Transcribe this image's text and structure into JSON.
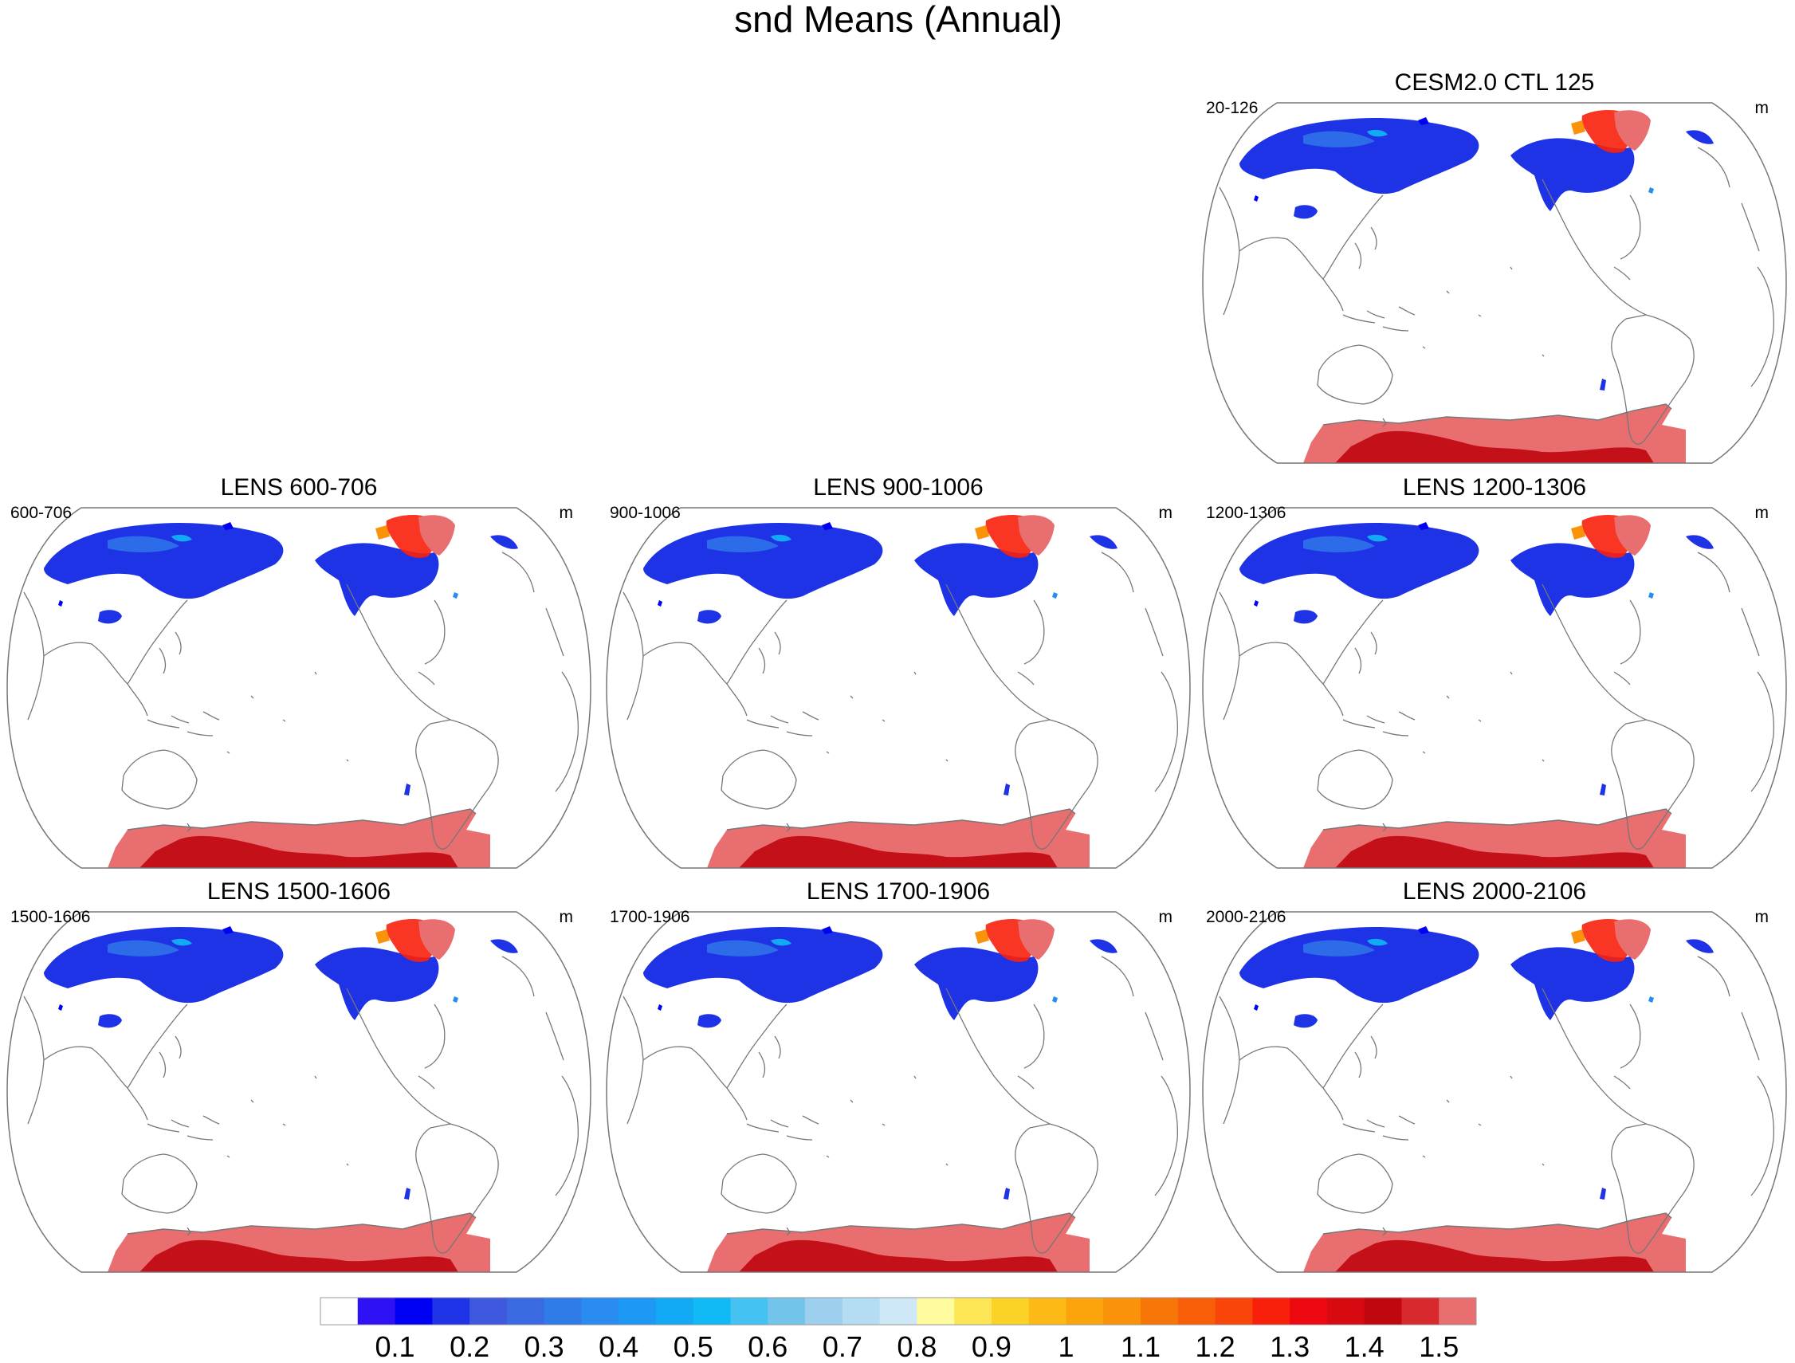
{
  "chart_data": {
    "type": "heatmap",
    "title": "snd Means (Annual)",
    "projection": "Robinson (Pacific-centered)",
    "units": "m",
    "panels": [
      {
        "title": "CESM2.0 CTL 125",
        "left_label": "20-126",
        "right_label": "m"
      },
      {
        "title": "LENS 600-706",
        "left_label": "600-706",
        "right_label": "m"
      },
      {
        "title": "LENS 900-1006",
        "left_label": "900-1006",
        "right_label": "m"
      },
      {
        "title": "LENS 1200-1306",
        "left_label": "1200-1306",
        "right_label": "m"
      },
      {
        "title": "LENS 1500-1606",
        "left_label": "1500-1606",
        "right_label": "m"
      },
      {
        "title": "LENS 1700-1906",
        "left_label": "1700-1906",
        "right_label": "m"
      },
      {
        "title": "LENS 2000-2106",
        "left_label": "2000-2106",
        "right_label": "m"
      }
    ],
    "colorbar": {
      "levels": [
        0.05,
        0.1,
        0.15,
        0.2,
        0.25,
        0.3,
        0.35,
        0.4,
        0.45,
        0.5,
        0.55,
        0.6,
        0.65,
        0.7,
        0.75,
        0.8,
        0.85,
        0.9,
        0.95,
        1,
        1.05,
        1.1,
        1.15,
        1.2,
        1.25,
        1.3,
        1.35,
        1.4,
        1.45,
        1.5
      ],
      "tick_labels": [
        "0.1",
        "0.2",
        "0.3",
        "0.4",
        "0.5",
        "0.6",
        "0.7",
        "0.8",
        "0.9",
        "1",
        "1.1",
        "1.2",
        "1.3",
        "1.4",
        "1.5"
      ],
      "colors": [
        "#ffffff",
        "#2e11f5",
        "#0000f5",
        "#1e32e6",
        "#3e59de",
        "#3a6ae2",
        "#2f7be8",
        "#2a8cf0",
        "#1e98f5",
        "#12aaf5",
        "#10bbf5",
        "#44c2f1",
        "#73c4eb",
        "#9dd0ee",
        "#b4ddf3",
        "#cfe8f8",
        "#fffca0",
        "#fde656",
        "#fcd226",
        "#fdb915",
        "#fca40b",
        "#fa920a",
        "#f87508",
        "#f85e08",
        "#f94509",
        "#f8200b",
        "#ee0810",
        "#d60a10",
        "#c0060e",
        "#d8292e",
        "#e86e70"
      ]
    }
  }
}
